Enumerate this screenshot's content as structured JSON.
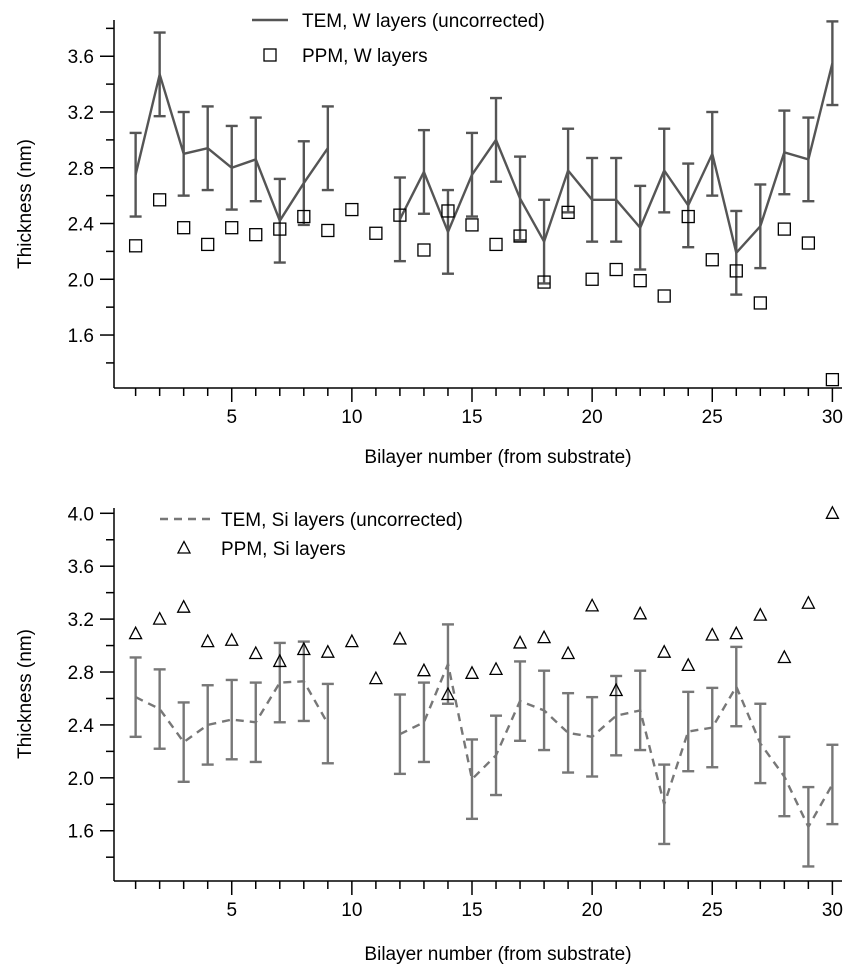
{
  "chart_data": [
    {
      "type": "line",
      "xlabel": "Bilayer number (from substrate)",
      "ylabel": "Thickness (nm)",
      "xlim": [
        0.1,
        30.4
      ],
      "ylim": [
        1.22,
        3.86
      ],
      "xticks": [
        5,
        10,
        15,
        20,
        25,
        30
      ],
      "xtick_labels": [
        "5",
        "10",
        "15",
        "20",
        "25",
        "30"
      ],
      "yticks": [
        1.6,
        2.0,
        2.4,
        2.8,
        3.2,
        3.6
      ],
      "ytick_labels": [
        "1.6",
        "2.0",
        "2.4",
        "2.8",
        "3.2",
        "3.6"
      ],
      "grid": false,
      "legend_position": "top",
      "series": [
        {
          "name": "TEM, W layers (uncorrected)",
          "style": "solid-line",
          "marker": "none",
          "color": "#555555",
          "x": [
            1,
            2,
            3,
            4,
            5,
            6,
            7,
            8,
            9,
            12,
            13,
            14,
            15,
            16,
            17,
            18,
            19,
            20,
            21,
            22,
            23,
            24,
            25,
            26,
            27,
            28,
            29,
            30
          ],
          "y": [
            2.75,
            3.47,
            2.9,
            2.94,
            2.8,
            2.86,
            2.42,
            2.69,
            2.94,
            2.43,
            2.77,
            2.34,
            2.75,
            3.0,
            2.58,
            2.27,
            2.78,
            2.57,
            2.57,
            2.37,
            2.78,
            2.53,
            2.9,
            2.19,
            2.38,
            2.91,
            2.86,
            3.55
          ],
          "error": [
            0.3,
            0.3,
            0.3,
            0.3,
            0.3,
            0.3,
            0.3,
            0.3,
            0.3,
            0.3,
            0.3,
            0.3,
            0.3,
            0.3,
            0.3,
            0.3,
            0.3,
            0.3,
            0.3,
            0.3,
            0.3,
            0.3,
            0.3,
            0.3,
            0.3,
            0.3,
            0.3,
            0.3
          ]
        },
        {
          "name": "PPM, W layers",
          "style": "none",
          "marker": "square-open",
          "color": "#000000",
          "x": [
            1,
            2,
            3,
            4,
            5,
            6,
            7,
            8,
            9,
            10,
            11,
            12,
            13,
            14,
            15,
            16,
            17,
            18,
            19,
            20,
            21,
            22,
            23,
            24,
            25,
            26,
            27,
            28,
            29,
            30
          ],
          "y": [
            2.24,
            2.57,
            2.37,
            2.25,
            2.37,
            2.32,
            2.36,
            2.45,
            2.35,
            2.5,
            2.33,
            2.46,
            2.21,
            2.49,
            2.39,
            2.25,
            2.31,
            1.98,
            2.48,
            2.0,
            2.07,
            1.99,
            1.88,
            2.45,
            2.14,
            2.06,
            1.83,
            2.36,
            2.26,
            1.28
          ]
        }
      ]
    },
    {
      "type": "line",
      "xlabel": "Bilayer number (from substrate)",
      "ylabel": "Thickness (nm)",
      "xlim": [
        0.1,
        30.4
      ],
      "ylim": [
        1.22,
        4.04
      ],
      "xticks": [
        5,
        10,
        15,
        20,
        25,
        30
      ],
      "xtick_labels": [
        "5",
        "10",
        "15",
        "20",
        "25",
        "30"
      ],
      "yticks": [
        1.6,
        2.0,
        2.4,
        2.8,
        3.2,
        3.6,
        4.0
      ],
      "ytick_labels": [
        "1.6",
        "2.0",
        "2.4",
        "2.8",
        "3.2",
        "3.6",
        "4.0"
      ],
      "grid": false,
      "legend_position": "top-left",
      "series": [
        {
          "name": "TEM, Si layers (uncorrected)",
          "style": "dashed-line",
          "marker": "none",
          "color": "#777777",
          "x": [
            1,
            2,
            3,
            4,
            5,
            6,
            7,
            8,
            9,
            12,
            13,
            14,
            15,
            16,
            17,
            18,
            19,
            20,
            21,
            22,
            23,
            24,
            25,
            26,
            27,
            28,
            29,
            30
          ],
          "y": [
            2.61,
            2.52,
            2.27,
            2.4,
            2.44,
            2.42,
            2.72,
            2.73,
            2.41,
            2.33,
            2.42,
            2.86,
            1.99,
            2.17,
            2.58,
            2.51,
            2.34,
            2.31,
            2.47,
            2.51,
            1.8,
            2.35,
            2.38,
            2.69,
            2.26,
            2.01,
            1.63,
            1.95
          ],
          "error": [
            0.3,
            0.3,
            0.3,
            0.3,
            0.3,
            0.3,
            0.3,
            0.3,
            0.3,
            0.3,
            0.3,
            0.3,
            0.3,
            0.3,
            0.3,
            0.3,
            0.3,
            0.3,
            0.3,
            0.3,
            0.3,
            0.3,
            0.3,
            0.3,
            0.3,
            0.3,
            0.3,
            0.3
          ]
        },
        {
          "name": "PPM, Si layers",
          "style": "none",
          "marker": "triangle-open",
          "color": "#000000",
          "x": [
            1,
            2,
            3,
            4,
            5,
            6,
            7,
            8,
            9,
            10,
            11,
            12,
            13,
            14,
            15,
            16,
            17,
            18,
            19,
            20,
            21,
            22,
            23,
            24,
            25,
            26,
            27,
            28,
            29,
            30
          ],
          "y": [
            3.09,
            3.2,
            3.29,
            3.03,
            3.04,
            2.94,
            2.88,
            2.97,
            2.95,
            3.03,
            2.75,
            3.05,
            2.81,
            2.63,
            2.79,
            2.82,
            3.02,
            3.06,
            2.94,
            3.3,
            2.66,
            3.24,
            2.95,
            2.85,
            3.08,
            3.09,
            3.23,
            2.91,
            3.32,
            4.0
          ]
        }
      ]
    }
  ]
}
